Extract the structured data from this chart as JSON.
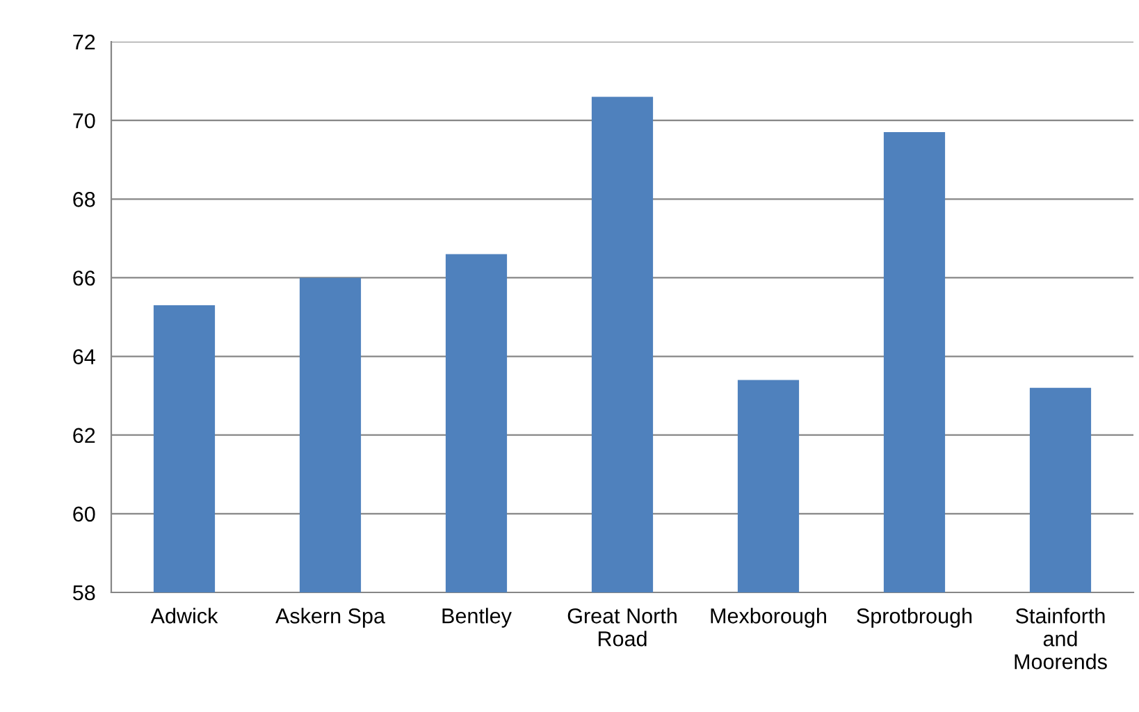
{
  "chart_data": {
    "type": "bar",
    "categories": [
      "Adwick",
      "Askern Spa",
      "Bentley",
      "Great North Road",
      "Mexborough",
      "Sprotbrough",
      "Stainforth and Moorends"
    ],
    "values": [
      65.3,
      66.0,
      66.6,
      70.6,
      63.4,
      69.7,
      63.2
    ],
    "color": "#4f81bd",
    "ylim": [
      58,
      72
    ],
    "yticks": [
      58,
      60,
      62,
      64,
      66,
      68,
      70,
      72
    ],
    "grid": "y",
    "legend": false
  }
}
